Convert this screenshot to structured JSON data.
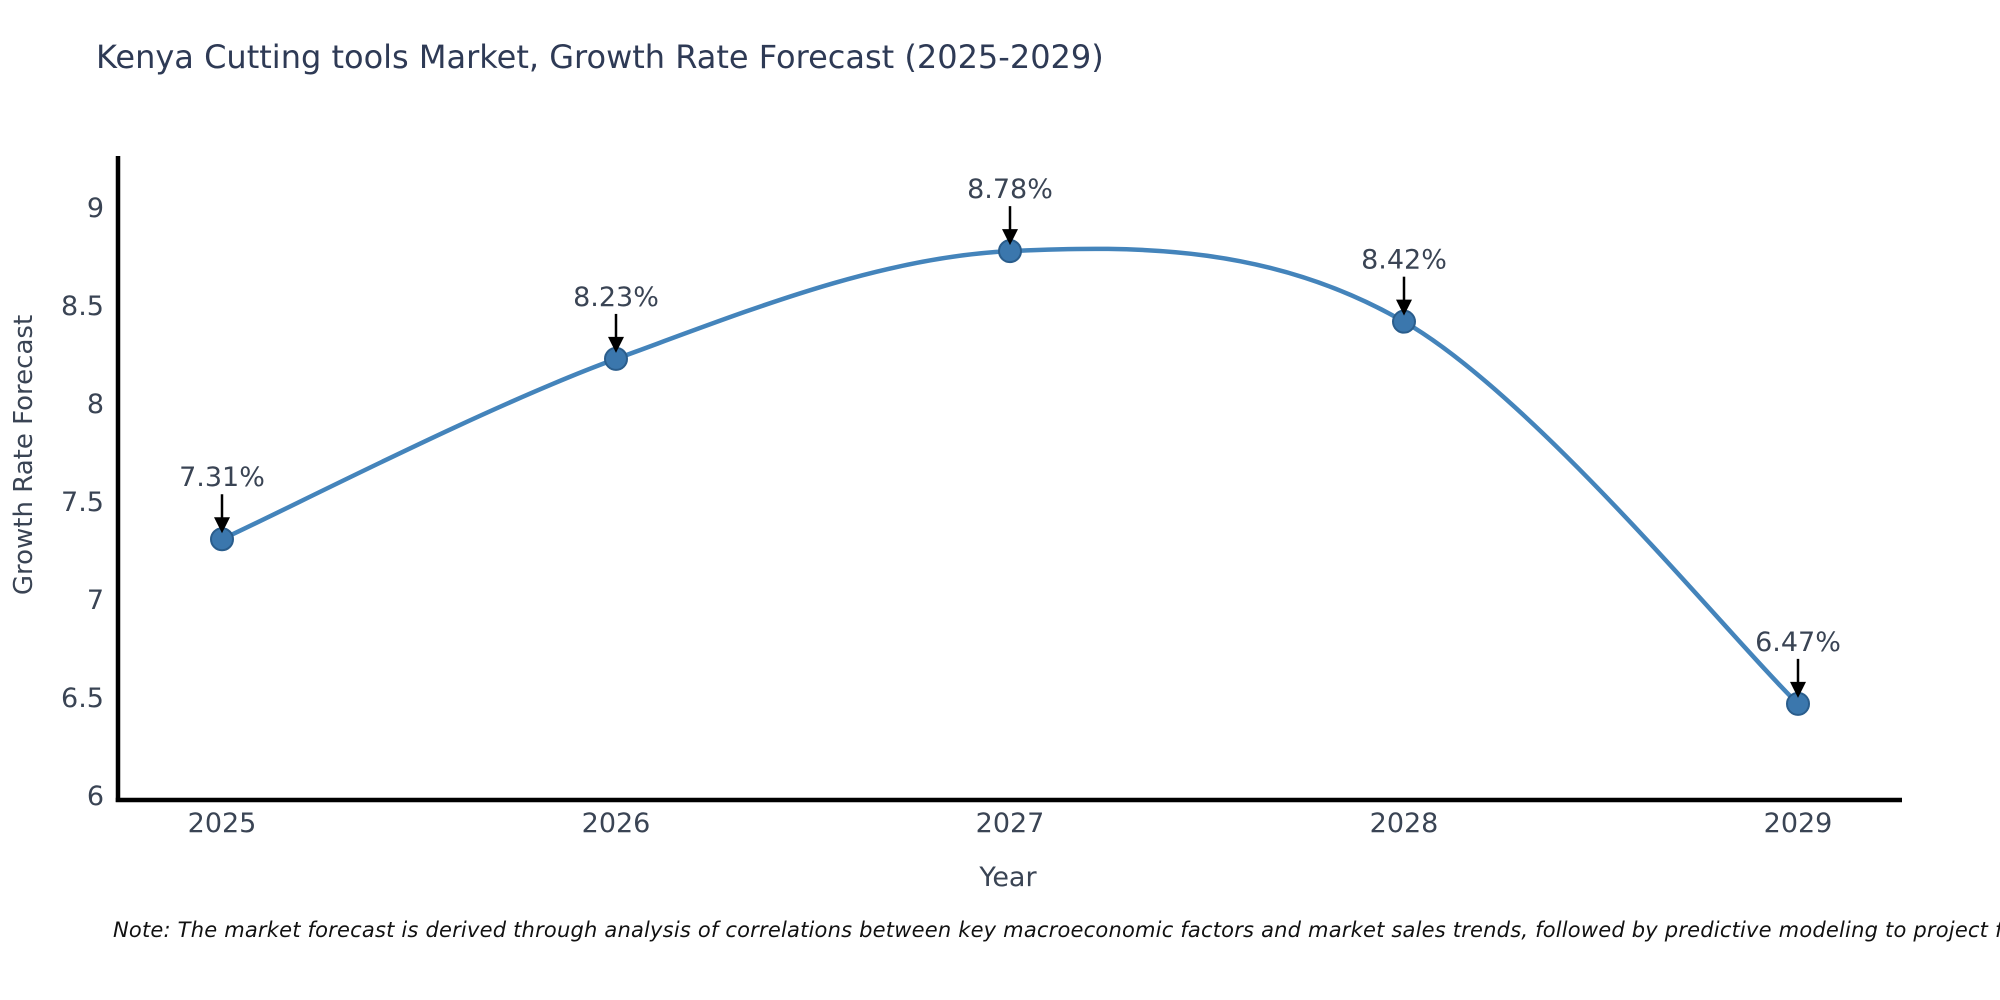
{
  "chart_data": {
    "type": "line",
    "title": "Kenya Cutting tools Market, Growth Rate Forecast (2025-2029)",
    "xlabel": "Year",
    "ylabel": "Growth Rate Forecast",
    "categories": [
      "2025",
      "2026",
      "2027",
      "2028",
      "2029"
    ],
    "values": [
      7.31,
      8.23,
      8.78,
      8.42,
      6.47
    ],
    "point_labels": [
      "7.31%",
      "8.23%",
      "8.78%",
      "8.42%",
      "6.47%"
    ],
    "y_ticks": [
      "6",
      "6.5",
      "7",
      "7.5",
      "8",
      "8.5",
      "9"
    ],
    "ylim": [
      6,
      9
    ],
    "grid": false,
    "legend": "none",
    "colors": {
      "line": "#4484bb",
      "marker_fill": "#3b77ad",
      "marker_edge": "#2a5d8c",
      "arrow": "#000000",
      "axis": "#000000",
      "title_text": "#2e3a55",
      "tick_text": "#3a4454"
    }
  },
  "note": {
    "text": "Note: The market forecast is derived through analysis of correlations between key macroeconomic factors and market sales trends, followed by predictive modeling to project future sales"
  }
}
